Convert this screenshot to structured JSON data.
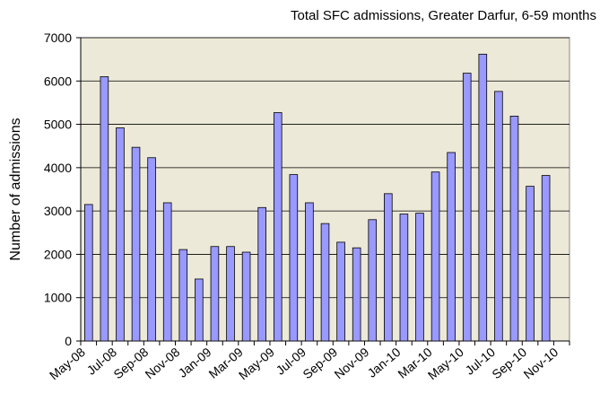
{
  "chart_data": {
    "type": "bar",
    "title": "Total SFC admissions, Greater Darfur, 6-59 months",
    "y_label": "Number of admissions",
    "categories": [
      "May-08",
      null,
      "Jul-08",
      null,
      "Sep-08",
      null,
      "Nov-08",
      null,
      "Jan-09",
      null,
      "Mar-09",
      null,
      "May-09",
      null,
      "Jul-09",
      null,
      "Sep-09",
      null,
      "Nov-09",
      null,
      "Jan-10",
      null,
      "Mar-10",
      null,
      "May-10",
      null,
      "Jul-10",
      null,
      "Sep-10",
      null,
      "Nov-10"
    ],
    "values": [
      3150,
      6100,
      4920,
      4470,
      4230,
      3190,
      2110,
      1430,
      2180,
      2180,
      2050,
      3080,
      5270,
      3840,
      3190,
      2710,
      2280,
      2150,
      2800,
      3400,
      2930,
      2950,
      3900,
      4350,
      6180,
      6620,
      5760,
      5190,
      3570,
      3820,
      null
    ],
    "color": "#9999ff",
    "ylim": [
      0,
      7000
    ],
    "yticks": [
      0,
      1000,
      2000,
      3000,
      4000,
      5000,
      6000,
      7000
    ],
    "grid": true
  }
}
